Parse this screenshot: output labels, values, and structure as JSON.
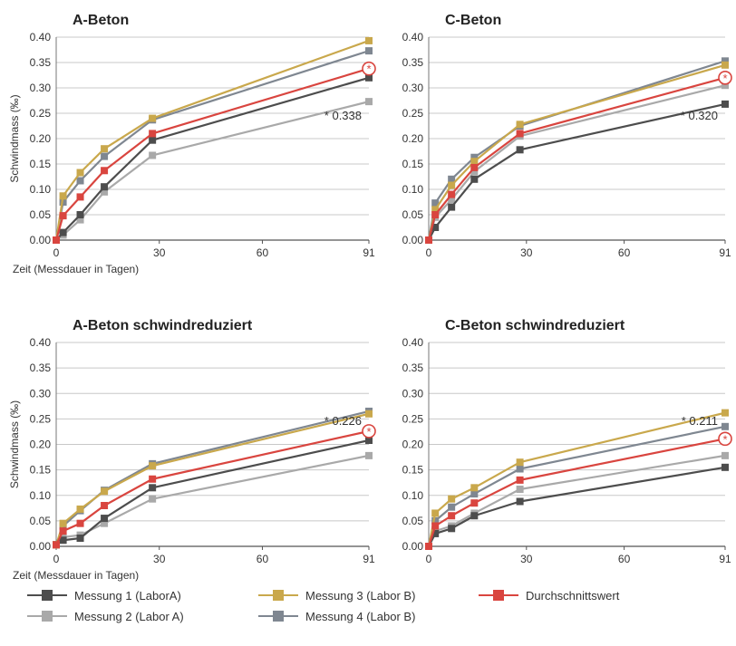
{
  "colors": {
    "m1": "#4d4d4d",
    "m2": "#a9a9a9",
    "m3": "#c9a84c",
    "m4": "#7f8791",
    "avg": "#d9453f"
  },
  "legend": [
    {
      "key": "m1",
      "label": "Messung 1 (LaborA)"
    },
    {
      "key": "m2",
      "label": "Messung 2 (Labor A)"
    },
    {
      "key": "m3",
      "label": "Messung 3 (Labor B)"
    },
    {
      "key": "m4",
      "label": "Messung 4 (Labor B)"
    },
    {
      "key": "avg",
      "label": "Durchschnittswert"
    }
  ],
  "chart_data": [
    {
      "type": "line",
      "title": "A-Beton",
      "ylabel": "Schwindmass (‰)",
      "xlabel": "Zeit (Messdauer in Tagen)",
      "xticks": [
        "0",
        "30",
        "60",
        "91"
      ],
      "yticks": [
        "0.00",
        "0.05",
        "0.10",
        "0.15",
        "0.20",
        "0.25",
        "0.30",
        "0.35",
        "0.40"
      ],
      "xlim": [
        0,
        91
      ],
      "ylim": [
        0,
        0.4
      ],
      "annotation": "* 0.338",
      "x": [
        0,
        2,
        7,
        14,
        28,
        91
      ],
      "series": [
        {
          "key": "m1",
          "name": "Messung 1 (LaborA)",
          "values": [
            0,
            0.015,
            0.05,
            0.105,
            0.197,
            0.32
          ]
        },
        {
          "key": "m2",
          "name": "Messung 2 (Labor A)",
          "values": [
            0,
            0.01,
            0.04,
            0.095,
            0.167,
            0.273
          ]
        },
        {
          "key": "m3",
          "name": "Messung 3 (Labor B)",
          "values": [
            0,
            0.087,
            0.133,
            0.18,
            0.24,
            0.393
          ]
        },
        {
          "key": "m4",
          "name": "Messung 4 (Labor B)",
          "values": [
            0,
            0.075,
            0.117,
            0.165,
            0.237,
            0.373
          ]
        },
        {
          "key": "avg",
          "name": "Durchschnittswert",
          "values": [
            0,
            0.048,
            0.085,
            0.137,
            0.21,
            0.338
          ]
        }
      ]
    },
    {
      "type": "line",
      "title": "C-Beton",
      "ylabel": "",
      "xlabel": "",
      "xticks": [
        "0",
        "30",
        "60",
        "91"
      ],
      "yticks": [
        "0.00",
        "0.05",
        "0.10",
        "0.15",
        "0.20",
        "0.25",
        "0.30",
        "0.35",
        "0.40"
      ],
      "xlim": [
        0,
        91
      ],
      "ylim": [
        0,
        0.4
      ],
      "annotation": "* 0.320",
      "x": [
        0,
        2,
        7,
        14,
        28,
        91
      ],
      "series": [
        {
          "key": "m1",
          "name": "Messung 1 (LaborA)",
          "values": [
            0,
            0.025,
            0.065,
            0.12,
            0.178,
            0.268
          ]
        },
        {
          "key": "m2",
          "name": "Messung 2 (Labor A)",
          "values": [
            0,
            0.045,
            0.08,
            0.135,
            0.205,
            0.305
          ]
        },
        {
          "key": "m3",
          "name": "Messung 3 (Labor B)",
          "values": [
            0,
            0.06,
            0.108,
            0.155,
            0.228,
            0.345
          ]
        },
        {
          "key": "m4",
          "name": "Messung 4 (Labor B)",
          "values": [
            0,
            0.073,
            0.12,
            0.163,
            0.225,
            0.353
          ]
        },
        {
          "key": "avg",
          "name": "Durchschnittswert",
          "values": [
            0,
            0.05,
            0.09,
            0.143,
            0.21,
            0.32
          ]
        }
      ]
    },
    {
      "type": "line",
      "title": "A-Beton schwindreduziert",
      "ylabel": "Schwindmass (‰)",
      "xlabel": "Zeit (Messdauer in Tagen)",
      "xticks": [
        "0",
        "30",
        "60",
        "91"
      ],
      "yticks": [
        "0.00",
        "0.05",
        "0.10",
        "0.15",
        "0.20",
        "0.25",
        "0.30",
        "0.35",
        "0.40"
      ],
      "xlim": [
        0,
        91
      ],
      "ylim": [
        0,
        0.4
      ],
      "annotation": "* 0.226",
      "x": [
        0,
        2,
        7,
        14,
        28,
        91
      ],
      "series": [
        {
          "key": "m1",
          "name": "Messung 1 (LaborA)",
          "values": [
            0.003,
            0.012,
            0.016,
            0.055,
            0.115,
            0.208
          ]
        },
        {
          "key": "m2",
          "name": "Messung 2 (Labor A)",
          "values": [
            0.003,
            0.018,
            0.022,
            0.045,
            0.093,
            0.178
          ]
        },
        {
          "key": "m3",
          "name": "Messung 3 (Labor B)",
          "values": [
            0.003,
            0.045,
            0.073,
            0.108,
            0.158,
            0.26
          ]
        },
        {
          "key": "m4",
          "name": "Messung 4 (Labor B)",
          "values": [
            0.003,
            0.04,
            0.07,
            0.11,
            0.162,
            0.265
          ]
        },
        {
          "key": "avg",
          "name": "Durchschnittswert",
          "values": [
            0.003,
            0.03,
            0.045,
            0.08,
            0.132,
            0.226
          ]
        }
      ]
    },
    {
      "type": "line",
      "title": "C-Beton schwindreduziert",
      "ylabel": "",
      "xlabel": "",
      "xticks": [
        "0",
        "30",
        "60",
        "91"
      ],
      "yticks": [
        "0.00",
        "0.05",
        "0.10",
        "0.15",
        "0.20",
        "0.25",
        "0.30",
        "0.35",
        "0.40"
      ],
      "xlim": [
        0,
        91
      ],
      "ylim": [
        0,
        0.4
      ],
      "annotation": "* 0.211",
      "x": [
        0,
        2,
        7,
        14,
        28,
        91
      ],
      "series": [
        {
          "key": "m1",
          "name": "Messung 1 (LaborA)",
          "values": [
            0,
            0.025,
            0.035,
            0.06,
            0.088,
            0.155
          ]
        },
        {
          "key": "m2",
          "name": "Messung 2 (Labor A)",
          "values": [
            0,
            0.03,
            0.04,
            0.065,
            0.112,
            0.178
          ]
        },
        {
          "key": "m3",
          "name": "Messung 3 (Labor B)",
          "values": [
            0,
            0.065,
            0.093,
            0.115,
            0.165,
            0.262
          ]
        },
        {
          "key": "m4",
          "name": "Messung 4 (Labor B)",
          "values": [
            0,
            0.05,
            0.077,
            0.103,
            0.152,
            0.235
          ]
        },
        {
          "key": "avg",
          "name": "Durchschnittswert",
          "values": [
            0,
            0.04,
            0.06,
            0.085,
            0.13,
            0.211
          ]
        }
      ]
    }
  ]
}
